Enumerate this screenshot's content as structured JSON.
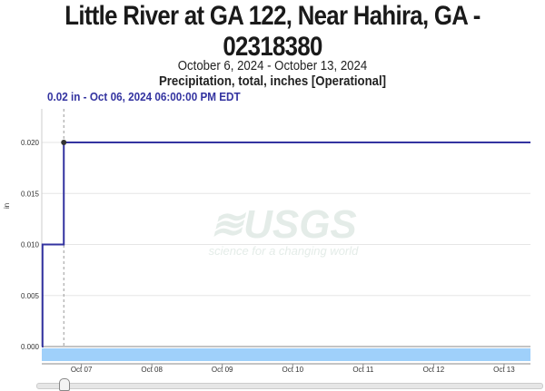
{
  "title_line1": "Little River at GA 122, Near Hahira, GA -",
  "title_line2": "02318380",
  "subtitle": "October 6, 2024 - October 13, 2024",
  "parameter": "Precipitation, total, inches [Operational]",
  "tooltip": "0.02 in - Oct 06, 2024 06:00:00 PM EDT",
  "watermark": {
    "logo": "USGS",
    "tagline": "science for a changing world"
  },
  "colors": {
    "series": "#3333a0",
    "brush": "#9fd0fa",
    "tooltip": "#3333a0"
  },
  "chart_data": {
    "type": "line",
    "step": true,
    "title": "Little River at GA 122, Near Hahira, GA - 02318380",
    "subtitle": "October 6, 2024 - October 13, 2024",
    "ylabel": "in",
    "xlabel": "",
    "ylim": [
      0,
      0.022
    ],
    "xlim": [
      "2024-10-06T10:30",
      "2024-10-13T09:00"
    ],
    "yticks": [
      "0.000",
      "0.005",
      "0.010",
      "0.015",
      "0.020"
    ],
    "xticks": [
      "Oct 07",
      "Oct 08",
      "Oct 09",
      "Oct 10",
      "Oct 11",
      "Oct 12",
      "Oct 13"
    ],
    "grid": true,
    "series": [
      {
        "x": [
          "2024-10-06T10:30",
          "2024-10-06T10:45",
          "2024-10-06T18:00",
          "2024-10-13T09:00"
        ],
        "values": [
          0.0,
          0.01,
          0.02,
          0.02
        ]
      }
    ],
    "highlight": {
      "x": "2024-10-06T18:00",
      "value": 0.02
    }
  }
}
